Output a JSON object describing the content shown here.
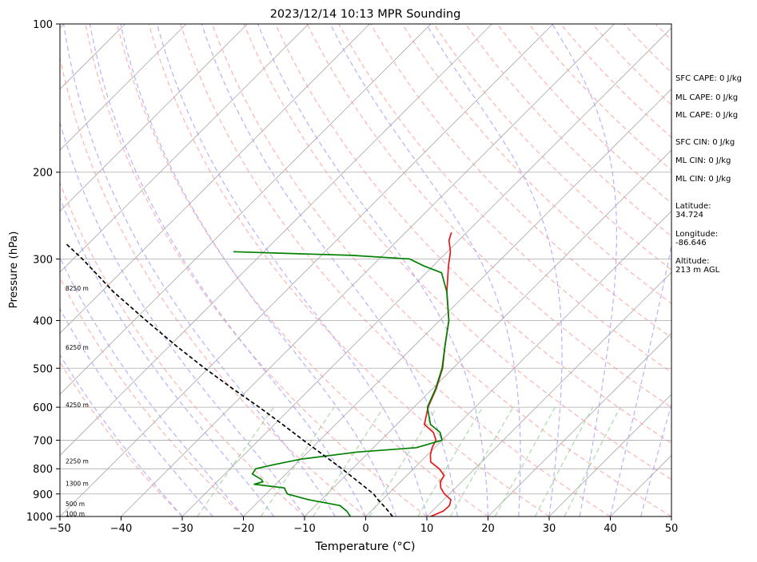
{
  "chart_data": {
    "type": "line",
    "title": "2023/12/14 10:13 MPR Sounding",
    "xlabel": "Temperature (°C)",
    "ylabel": "Pressure (hPa)",
    "xlim": [
      -50,
      50
    ],
    "ylim": [
      1000,
      100
    ],
    "yscale": "log",
    "skew": true,
    "grid": true,
    "x_ticks": [
      -50,
      -40,
      -30,
      -20,
      -10,
      0,
      10,
      20,
      30,
      40,
      50
    ],
    "x_tick_labels": [
      "−50",
      "−40",
      "−30",
      "−20",
      "−10",
      "0",
      "10",
      "20",
      "30",
      "40",
      "50"
    ],
    "y_ticks": [
      1000,
      900,
      800,
      700,
      600,
      500,
      400,
      300,
      200,
      100
    ],
    "y_tick_labels": [
      "1000",
      "900",
      "800",
      "700",
      "600",
      "500",
      "400",
      "300",
      "200",
      "100"
    ],
    "series": [
      {
        "color": "#e31a1c",
        "style": "solid",
        "points": [
          [
            10.6,
            1000
          ],
          [
            11.8,
            975
          ],
          [
            11.9,
            950
          ],
          [
            11.2,
            925
          ],
          [
            9.2,
            900
          ],
          [
            7.6,
            875
          ],
          [
            6.5,
            850
          ],
          [
            6.1,
            825
          ],
          [
            4.2,
            800
          ],
          [
            1.7,
            775
          ],
          [
            0.5,
            750
          ],
          [
            -0.4,
            725
          ],
          [
            -1.0,
            700
          ],
          [
            -2.7,
            675
          ],
          [
            -5.5,
            650
          ],
          [
            -7.7,
            600
          ],
          [
            -9.4,
            550
          ],
          [
            -11.7,
            500
          ],
          [
            -15.0,
            450
          ],
          [
            -18.5,
            400
          ],
          [
            -23.5,
            350
          ],
          [
            -27.5,
            310
          ],
          [
            -29.5,
            290
          ],
          [
            -31.6,
            275
          ],
          [
            -32.5,
            265
          ]
        ]
      },
      {
        "color": "#008000",
        "style": "solid",
        "points": [
          [
            -2.5,
            1000
          ],
          [
            -4.0,
            975
          ],
          [
            -6.0,
            950
          ],
          [
            -12.0,
            925
          ],
          [
            -16.5,
            900
          ],
          [
            -18.0,
            875
          ],
          [
            -23.5,
            860
          ],
          [
            -22.5,
            850
          ],
          [
            -23.2,
            840
          ],
          [
            -25.5,
            820
          ],
          [
            -25.8,
            800
          ],
          [
            -23.5,
            785
          ],
          [
            -20.0,
            765
          ],
          [
            -12.0,
            740
          ],
          [
            -3.0,
            725
          ],
          [
            0.0,
            700
          ],
          [
            -1.6,
            675
          ],
          [
            -4.5,
            650
          ],
          [
            -7.8,
            600
          ],
          [
            -9.5,
            550
          ],
          [
            -11.8,
            500
          ],
          [
            -15.0,
            450
          ],
          [
            -18.5,
            400
          ],
          [
            -23.5,
            350
          ],
          [
            -27.5,
            320
          ],
          [
            -31.5,
            310
          ],
          [
            -35.0,
            300
          ],
          [
            -45.0,
            295
          ],
          [
            -65.0,
            290
          ]
        ]
      },
      {
        "color": "#000000",
        "style": "dashed",
        "points": [
          [
            4.4,
            1000
          ],
          [
            2.8,
            975
          ],
          [
            1.1,
            950
          ],
          [
            -0.7,
            925
          ],
          [
            -2.4,
            900
          ],
          [
            -6.9,
            850
          ],
          [
            -11.7,
            800
          ],
          [
            -17.0,
            750
          ],
          [
            -22.7,
            700
          ],
          [
            -28.7,
            650
          ],
          [
            -35.3,
            600
          ],
          [
            -42.7,
            550
          ],
          [
            -50.6,
            500
          ],
          [
            -59.0,
            450
          ],
          [
            -68.0,
            400
          ],
          [
            -78.0,
            350
          ],
          [
            -88.5,
            300
          ],
          [
            -93.5,
            280
          ]
        ]
      }
    ],
    "height_labels": [
      {
        "text": "100 m",
        "pressure": 990
      },
      {
        "text": "500 m",
        "pressure": 945
      },
      {
        "text": "1300 m",
        "pressure": 860
      },
      {
        "text": "2250 m",
        "pressure": 775
      },
      {
        "text": "4250 m",
        "pressure": 595
      },
      {
        "text": "6250 m",
        "pressure": 455
      },
      {
        "text": "8250 m",
        "pressure": 345
      }
    ],
    "annotations": [
      "SFC CAPE: 0 J/kg",
      "ML CAPE: 0 J/kg",
      "ML CAPE: 0 J/kg",
      "SFC CIN: 0 J/kg",
      "ML CIN: 0 J/kg",
      "ML CIN: 0 J/kg",
      "Latitude:\n34.724",
      "Longitude:\n-86.646",
      "Altitude:\n213 m AGL"
    ],
    "background_lines": {
      "isotherms_color": "#aaaaaa",
      "dry_adiabats_color": "#ff9999",
      "moist_adiabats_color": "#9999ff",
      "mixing_ratio_color": "#88cc88"
    }
  }
}
